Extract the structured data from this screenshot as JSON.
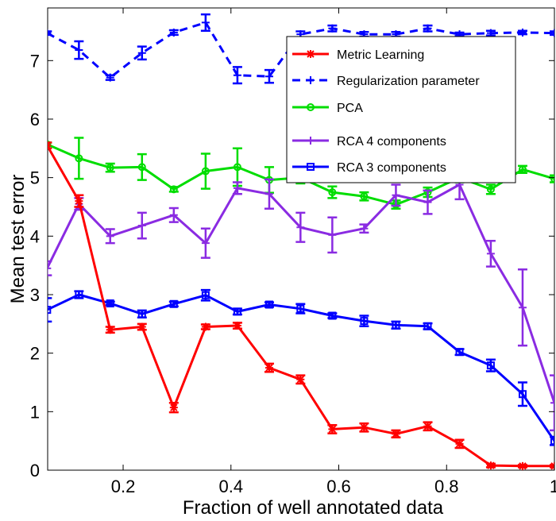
{
  "chart_data": {
    "type": "line",
    "title": "",
    "xlabel": "Fraction of well annotated data",
    "ylabel": "Mean test error",
    "xlim": [
      0.06,
      1.0
    ],
    "ylim": [
      0,
      7.9
    ],
    "x_ticks": [
      0.2,
      0.4,
      0.6,
      0.8,
      1
    ],
    "x_tick_labels": [
      "0.2",
      "0.4",
      "0.6",
      "0.8",
      "1"
    ],
    "y_ticks": [
      0,
      1,
      2,
      3,
      4,
      5,
      6,
      7
    ],
    "y_tick_labels": [
      "0",
      "1",
      "2",
      "3",
      "4",
      "5",
      "6",
      "7"
    ],
    "grid": false,
    "legend_position": "top-right",
    "x": [
      0.059,
      0.118,
      0.176,
      0.235,
      0.294,
      0.353,
      0.412,
      0.471,
      0.529,
      0.588,
      0.647,
      0.706,
      0.765,
      0.824,
      0.882,
      0.941,
      1.0
    ],
    "series": [
      {
        "name": "Metric Learning",
        "color": "#ff0000",
        "dash": "solid",
        "marker": "asterisk",
        "values": [
          5.55,
          4.6,
          2.4,
          2.45,
          1.07,
          2.45,
          2.47,
          1.75,
          1.55,
          0.7,
          0.73,
          0.62,
          0.75,
          0.45,
          0.08,
          0.07,
          0.07
        ],
        "errors": [
          0.05,
          0.1,
          0.05,
          0.05,
          0.08,
          0.04,
          0.05,
          0.07,
          0.07,
          0.07,
          0.07,
          0.06,
          0.07,
          0.07,
          0.03,
          0.02,
          0.02
        ]
      },
      {
        "name": "Regularization parameter",
        "color": "#0000ff",
        "dash": "dashed",
        "marker": "plus",
        "values": [
          7.47,
          7.18,
          6.71,
          7.13,
          7.48,
          7.65,
          6.75,
          6.73,
          7.45,
          7.55,
          7.45,
          7.45,
          7.55,
          7.45,
          7.47,
          7.48,
          7.47
        ],
        "errors": [
          0.03,
          0.15,
          0.04,
          0.11,
          0.04,
          0.14,
          0.14,
          0.11,
          0.05,
          0.05,
          0.04,
          0.04,
          0.05,
          0.03,
          0.04,
          0.03,
          0.03
        ]
      },
      {
        "name": "PCA",
        "color": "#00dd00",
        "dash": "solid",
        "marker": "circle",
        "values": [
          5.57,
          5.33,
          5.17,
          5.18,
          4.8,
          5.11,
          5.18,
          4.96,
          5.0,
          4.75,
          4.68,
          4.54,
          4.75,
          5.0,
          4.8,
          5.14,
          4.98
        ],
        "errors": [
          0.03,
          0.35,
          0.07,
          0.22,
          0.04,
          0.3,
          0.32,
          0.22,
          0.1,
          0.1,
          0.07,
          0.07,
          0.08,
          0.08,
          0.08,
          0.06,
          0.06
        ]
      },
      {
        "name": "RCA 4 components",
        "color": "#8a2be2",
        "dash": "solid",
        "marker": "plus",
        "values": [
          3.45,
          4.55,
          4.0,
          4.18,
          4.36,
          3.88,
          4.82,
          4.72,
          4.15,
          4.02,
          4.13,
          4.7,
          4.58,
          4.88,
          3.7,
          2.78,
          1.15
        ],
        "errors": [
          0.12,
          0.1,
          0.12,
          0.22,
          0.12,
          0.25,
          0.1,
          0.25,
          0.25,
          0.3,
          0.07,
          0.18,
          0.2,
          0.25,
          0.22,
          0.65,
          0.47
        ]
      },
      {
        "name": "RCA 3 components",
        "color": "#0000ff",
        "dash": "solid",
        "marker": "square",
        "values": [
          2.74,
          3.0,
          2.85,
          2.67,
          2.84,
          2.99,
          2.71,
          2.83,
          2.76,
          2.64,
          2.55,
          2.48,
          2.46,
          2.02,
          1.79,
          1.3,
          0.5
        ],
        "errors": [
          0.2,
          0.06,
          0.03,
          0.06,
          0.04,
          0.09,
          0.05,
          0.04,
          0.08,
          0.04,
          0.09,
          0.06,
          0.05,
          0.05,
          0.1,
          0.2,
          0.07
        ]
      }
    ]
  }
}
